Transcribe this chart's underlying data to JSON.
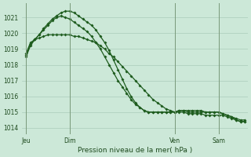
{
  "background_color": "#cce8d8",
  "grid_color": "#aaccba",
  "line_color": "#1e5c1e",
  "title": "Pression niveau de la mer( hPa )",
  "ylim": [
    1013.6,
    1021.9
  ],
  "yticks": [
    1014,
    1015,
    1016,
    1017,
    1018,
    1019,
    1020,
    1021
  ],
  "xlim": [
    -3,
    152
  ],
  "x_day_labels": [
    {
      "label": "Jeu",
      "x": 0
    },
    {
      "label": "Dim",
      "x": 30
    },
    {
      "label": "Ven",
      "x": 102
    },
    {
      "label": "Sam",
      "x": 132
    }
  ],
  "x_day_vlines": [
    0,
    30,
    102,
    132
  ],
  "series1_x": [
    0,
    3,
    6,
    9,
    12,
    15,
    18,
    21,
    24,
    27,
    30,
    33,
    36,
    39,
    42,
    45,
    48,
    51,
    54,
    57,
    60,
    63,
    66,
    69,
    72,
    75,
    78,
    81,
    84,
    87,
    90,
    93,
    96,
    99,
    102,
    105,
    108,
    111,
    114,
    117,
    120,
    123,
    126,
    129,
    132,
    135,
    138,
    141,
    144,
    147,
    150
  ],
  "series1_y": [
    1018.7,
    1019.4,
    1019.6,
    1019.7,
    1019.8,
    1019.9,
    1019.9,
    1019.9,
    1019.9,
    1019.9,
    1019.9,
    1019.8,
    1019.8,
    1019.7,
    1019.6,
    1019.5,
    1019.4,
    1019.2,
    1019.0,
    1018.7,
    1018.5,
    1018.2,
    1017.9,
    1017.6,
    1017.3,
    1017.0,
    1016.7,
    1016.4,
    1016.1,
    1015.8,
    1015.6,
    1015.4,
    1015.2,
    1015.1,
    1015.0,
    1015.0,
    1015.0,
    1014.9,
    1014.9,
    1014.9,
    1014.9,
    1014.8,
    1014.8,
    1014.8,
    1014.8,
    1014.8,
    1014.7,
    1014.6,
    1014.5,
    1014.4,
    1014.4
  ],
  "series2_x": [
    0,
    3,
    6,
    9,
    12,
    15,
    18,
    21,
    24,
    27,
    30,
    33,
    36,
    39,
    42,
    45,
    48,
    51,
    54,
    57,
    60,
    63,
    66,
    69,
    72,
    75,
    78,
    81,
    84,
    87,
    90,
    93,
    96,
    99,
    102,
    105,
    108,
    111,
    114,
    117,
    120,
    123,
    126,
    129,
    132,
    135,
    138,
    141,
    144,
    147,
    150
  ],
  "series2_y": [
    1018.5,
    1019.2,
    1019.6,
    1019.9,
    1020.2,
    1020.5,
    1020.8,
    1021.0,
    1021.1,
    1021.0,
    1020.9,
    1020.7,
    1020.5,
    1020.3,
    1020.1,
    1019.8,
    1019.4,
    1019.0,
    1018.5,
    1018.0,
    1017.5,
    1017.0,
    1016.6,
    1016.2,
    1015.8,
    1015.5,
    1015.3,
    1015.1,
    1015.0,
    1015.0,
    1015.0,
    1015.0,
    1015.0,
    1015.0,
    1015.0,
    1015.1,
    1015.1,
    1015.1,
    1015.1,
    1015.1,
    1015.1,
    1015.0,
    1015.0,
    1015.0,
    1015.0,
    1014.9,
    1014.8,
    1014.7,
    1014.6,
    1014.5,
    1014.5
  ],
  "series3_x": [
    0,
    3,
    6,
    9,
    12,
    15,
    18,
    21,
    24,
    27,
    30,
    33,
    36,
    39,
    42,
    45,
    48,
    51,
    54,
    57,
    60,
    63,
    66,
    69,
    72,
    75,
    78,
    81,
    84,
    87,
    90,
    93,
    96,
    99,
    102,
    105,
    108,
    111,
    114,
    117,
    120,
    123,
    126,
    129,
    132,
    135,
    138,
    141,
    144,
    147,
    150
  ],
  "series3_y": [
    1018.6,
    1019.3,
    1019.6,
    1019.9,
    1020.3,
    1020.6,
    1020.9,
    1021.1,
    1021.3,
    1021.4,
    1021.4,
    1021.3,
    1021.1,
    1020.9,
    1020.7,
    1020.5,
    1020.2,
    1019.8,
    1019.4,
    1018.9,
    1018.3,
    1017.7,
    1017.1,
    1016.5,
    1016.0,
    1015.6,
    1015.3,
    1015.1,
    1015.0,
    1015.0,
    1015.0,
    1015.0,
    1015.0,
    1015.0,
    1015.0,
    1015.1,
    1015.1,
    1015.0,
    1015.0,
    1015.0,
    1015.0,
    1015.0,
    1015.0,
    1015.0,
    1015.0,
    1014.9,
    1014.8,
    1014.7,
    1014.5,
    1014.4,
    1014.4
  ]
}
